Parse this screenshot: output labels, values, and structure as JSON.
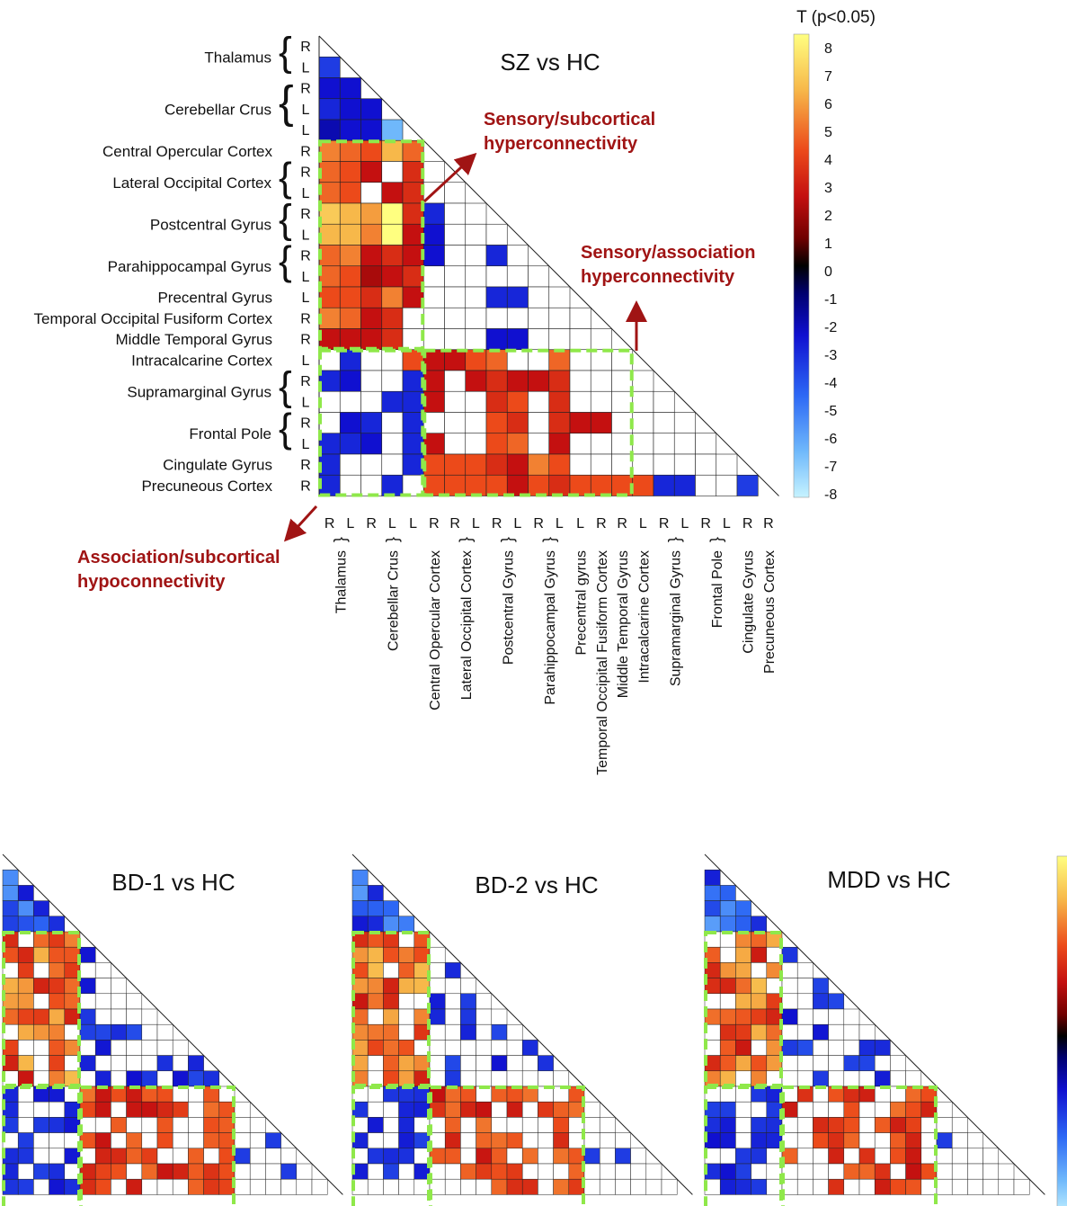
{
  "main_chart": {
    "title": "SZ vs HC",
    "colorbar_title": "T (p<0.05)",
    "colorbar_ticks": [
      "8",
      "7",
      "6",
      "5",
      "4",
      "3",
      "2",
      "1",
      "0",
      "-1",
      "-2",
      "-3",
      "-4",
      "-5",
      "-6",
      "-7",
      "-8"
    ],
    "annotations": {
      "sensory_subcortical": [
        "Sensory/subcortical",
        "hyperconnectivity"
      ],
      "sensory_association": [
        "Sensory/association",
        "hyperconnectivity"
      ],
      "association_subcortical": [
        "Association/subcortical",
        "hypoconnectivity"
      ]
    }
  },
  "regions": [
    {
      "name": "Thalamus",
      "sides": [
        "R",
        "L"
      ]
    },
    {
      "name": "Cerebellar Crus",
      "sides": [
        "R",
        "L",
        "L"
      ]
    },
    {
      "name": "Central Opercular Cortex",
      "sides": [
        "R"
      ]
    },
    {
      "name": "Lateral Occipital Cortex",
      "sides": [
        "R",
        "L"
      ]
    },
    {
      "name": "Postcentral Gyrus",
      "sides": [
        "R",
        "L"
      ]
    },
    {
      "name": "Parahippocampal Gyrus",
      "sides": [
        "R",
        "L"
      ]
    },
    {
      "name": "Precentral Gyrus",
      "sides": [
        "L"
      ]
    },
    {
      "name": "Temporal Occipital Fusiform Cortex",
      "sides": [
        "R"
      ]
    },
    {
      "name": "Middle Temporal Gyrus",
      "sides": [
        "R"
      ]
    },
    {
      "name": "Intracalcarine Cortex",
      "sides": [
        "L"
      ]
    },
    {
      "name": "Supramarginal Gyrus",
      "sides": [
        "R",
        "L"
      ]
    },
    {
      "name": "Frontal Pole",
      "sides": [
        "R",
        "L"
      ]
    },
    {
      "name": "Cingulate Gyrus",
      "sides": [
        "R"
      ]
    },
    {
      "name": "Precuneous Cortex",
      "sides": [
        "R"
      ]
    }
  ],
  "x_axis_labels": [
    "Thalamus",
    "Cerebellar Crus",
    "Central Opercular Cortex",
    "Lateral Occipital Cortex",
    "Postcentral Gyrus",
    "Parahippocampal Gyrus",
    "Precentral gyrus",
    "Temporal Occipital Fusiform Cortex",
    "Middle Temporal Gyrus",
    "Intracalcarine Cortex",
    "Supramarginal Gyrus",
    "Frontal Pole",
    "Cingulate Gyrus",
    "Precuneous Cortex"
  ],
  "x_axis_sides": [
    "R",
    "L",
    "R",
    "L",
    "L",
    "R",
    "R",
    "L",
    "R",
    "L",
    "R",
    "L",
    "L",
    "R",
    "R",
    "L",
    "R",
    "L",
    "R",
    "L",
    "R",
    "R"
  ],
  "small_panels": [
    {
      "title": "BD-1 vs HC"
    },
    {
      "title": "BD-2 vs HC"
    },
    {
      "title": "MDD vs HC"
    }
  ],
  "chart_data": {
    "type": "heatmap",
    "title": "SZ vs HC",
    "colorbar_label": "T (p<0.05)",
    "vlim": [
      -8,
      8
    ],
    "size": 22,
    "cells": [
      [
        1,
        0,
        -4
      ],
      [
        2,
        0,
        -3
      ],
      [
        2,
        1,
        -3
      ],
      [
        3,
        0,
        -3.5
      ],
      [
        3,
        1,
        -3
      ],
      [
        3,
        2,
        -3
      ],
      [
        4,
        0,
        -2.5
      ],
      [
        4,
        1,
        -3
      ],
      [
        4,
        2,
        -3
      ],
      [
        4,
        3,
        -6.5
      ],
      [
        5,
        0,
        5
      ],
      [
        5,
        1,
        4.5
      ],
      [
        5,
        2,
        4
      ],
      [
        5,
        3,
        6
      ],
      [
        5,
        4,
        4.5
      ],
      [
        6,
        0,
        4.5
      ],
      [
        6,
        1,
        4
      ],
      [
        6,
        2,
        3
      ],
      [
        6,
        4,
        3.5
      ],
      [
        7,
        0,
        4.5
      ],
      [
        7,
        1,
        4
      ],
      [
        7,
        3,
        3
      ],
      [
        7,
        4,
        3.5
      ],
      [
        7,
        7,
        -3.5
      ],
      [
        8,
        0,
        6.5
      ],
      [
        8,
        1,
        6
      ],
      [
        8,
        2,
        5.5
      ],
      [
        8,
        3,
        8
      ],
      [
        8,
        4,
        3.5
      ],
      [
        8,
        5,
        -3.5
      ],
      [
        9,
        0,
        6
      ],
      [
        9,
        1,
        6
      ],
      [
        9,
        2,
        5
      ],
      [
        9,
        3,
        8
      ],
      [
        9,
        4,
        3
      ],
      [
        9,
        5,
        -3
      ],
      [
        10,
        0,
        4.5
      ],
      [
        10,
        1,
        5
      ],
      [
        10,
        2,
        3
      ],
      [
        10,
        3,
        3.5
      ],
      [
        10,
        4,
        3
      ],
      [
        10,
        5,
        -3
      ],
      [
        10,
        8,
        -3.5
      ],
      [
        11,
        0,
        4.5
      ],
      [
        11,
        1,
        4
      ],
      [
        11,
        2,
        2.5
      ],
      [
        11,
        3,
        3
      ],
      [
        11,
        4,
        3.5
      ],
      [
        12,
        0,
        4
      ],
      [
        12,
        1,
        4
      ],
      [
        12,
        2,
        3.5
      ],
      [
        12,
        3,
        5
      ],
      [
        12,
        4,
        3
      ],
      [
        12,
        8,
        -3.5
      ],
      [
        12,
        9,
        -3.5
      ],
      [
        13,
        0,
        5
      ],
      [
        13,
        1,
        4.5
      ],
      [
        13,
        2,
        3
      ],
      [
        13,
        3,
        3.5
      ],
      [
        14,
        0,
        3
      ],
      [
        14,
        1,
        3
      ],
      [
        14,
        2,
        3
      ],
      [
        14,
        3,
        3.5
      ],
      [
        14,
        8,
        -3
      ],
      [
        14,
        9,
        -3
      ],
      [
        15,
        1,
        -3.5
      ],
      [
        15,
        4,
        4
      ],
      [
        15,
        5,
        3
      ],
      [
        15,
        6,
        3
      ],
      [
        15,
        7,
        4
      ],
      [
        15,
        8,
        4.5
      ],
      [
        15,
        11,
        4.5
      ],
      [
        16,
        0,
        -3.5
      ],
      [
        16,
        1,
        -3
      ],
      [
        16,
        4,
        -3.5
      ],
      [
        16,
        5,
        3
      ],
      [
        16,
        7,
        3
      ],
      [
        16,
        8,
        3.5
      ],
      [
        16,
        9,
        3
      ],
      [
        16,
        10,
        3
      ],
      [
        16,
        11,
        3.5
      ],
      [
        17,
        3,
        -3.5
      ],
      [
        17,
        4,
        -3.5
      ],
      [
        17,
        5,
        3
      ],
      [
        17,
        8,
        3.5
      ],
      [
        17,
        9,
        4
      ],
      [
        17,
        11,
        3.5
      ],
      [
        18,
        1,
        -3
      ],
      [
        18,
        2,
        -3.5
      ],
      [
        18,
        4,
        -3.5
      ],
      [
        18,
        8,
        4
      ],
      [
        18,
        9,
        3.5
      ],
      [
        18,
        11,
        3.5
      ],
      [
        18,
        12,
        3
      ],
      [
        18,
        13,
        3
      ],
      [
        19,
        0,
        -3.5
      ],
      [
        19,
        1,
        -3.5
      ],
      [
        19,
        2,
        -3
      ],
      [
        19,
        4,
        -3.5
      ],
      [
        19,
        5,
        3
      ],
      [
        19,
        8,
        4
      ],
      [
        19,
        9,
        4.5
      ],
      [
        19,
        11,
        3
      ],
      [
        20,
        0,
        -3.5
      ],
      [
        20,
        4,
        -3.5
      ],
      [
        20,
        5,
        4
      ],
      [
        20,
        6,
        4
      ],
      [
        20,
        7,
        4
      ],
      [
        20,
        8,
        3.5
      ],
      [
        20,
        9,
        3
      ],
      [
        20,
        10,
        5
      ],
      [
        20,
        11,
        4
      ],
      [
        21,
        0,
        -3.5
      ],
      [
        21,
        3,
        -3.5
      ],
      [
        21,
        5,
        4
      ],
      [
        21,
        6,
        4
      ],
      [
        21,
        7,
        4
      ],
      [
        21,
        8,
        4
      ],
      [
        21,
        9,
        3
      ],
      [
        21,
        10,
        4
      ],
      [
        21,
        11,
        3.5
      ],
      [
        21,
        12,
        4
      ],
      [
        21,
        13,
        4
      ],
      [
        21,
        14,
        4
      ],
      [
        21,
        15,
        4
      ],
      [
        21,
        16,
        -3.5
      ],
      [
        21,
        17,
        -3.5
      ],
      [
        21,
        20,
        -4
      ]
    ]
  }
}
